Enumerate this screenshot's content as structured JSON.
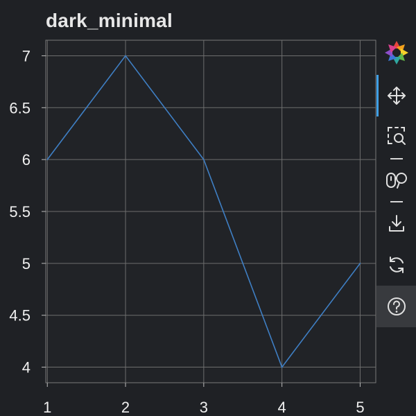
{
  "chart_data": {
    "type": "line",
    "title": "dark_minimal",
    "x": [
      1,
      2,
      3,
      4,
      5
    ],
    "series": [
      {
        "values": [
          6,
          7,
          6,
          4,
          5
        ]
      }
    ],
    "x_ticks": [
      1,
      2,
      3,
      4,
      5
    ],
    "y_ticks": [
      4,
      4.5,
      5,
      5.5,
      6,
      6.5,
      7
    ],
    "xlim": [
      0.98,
      5.2
    ],
    "ylim": [
      3.85,
      7.15
    ],
    "xlabel": "",
    "ylabel": "",
    "grid": true,
    "line_color": "#3f7fc4",
    "background": "#1f2125",
    "plot_background": "#212327",
    "grid_color": "#6e6e6e"
  },
  "toolbar": {
    "tools": [
      {
        "name": "bokeh-logo",
        "icon": "bokeh-logo-icon"
      },
      {
        "name": "pan",
        "icon": "pan-icon",
        "active": true
      },
      {
        "name": "box-zoom",
        "icon": "box-zoom-icon"
      },
      {
        "name": "wheel-zoom",
        "icon": "wheel-zoom-icon"
      },
      {
        "name": "save",
        "icon": "save-icon"
      },
      {
        "name": "reset",
        "icon": "reset-icon"
      },
      {
        "name": "help",
        "icon": "help-icon"
      }
    ],
    "active_color": "#3fa0e6"
  }
}
